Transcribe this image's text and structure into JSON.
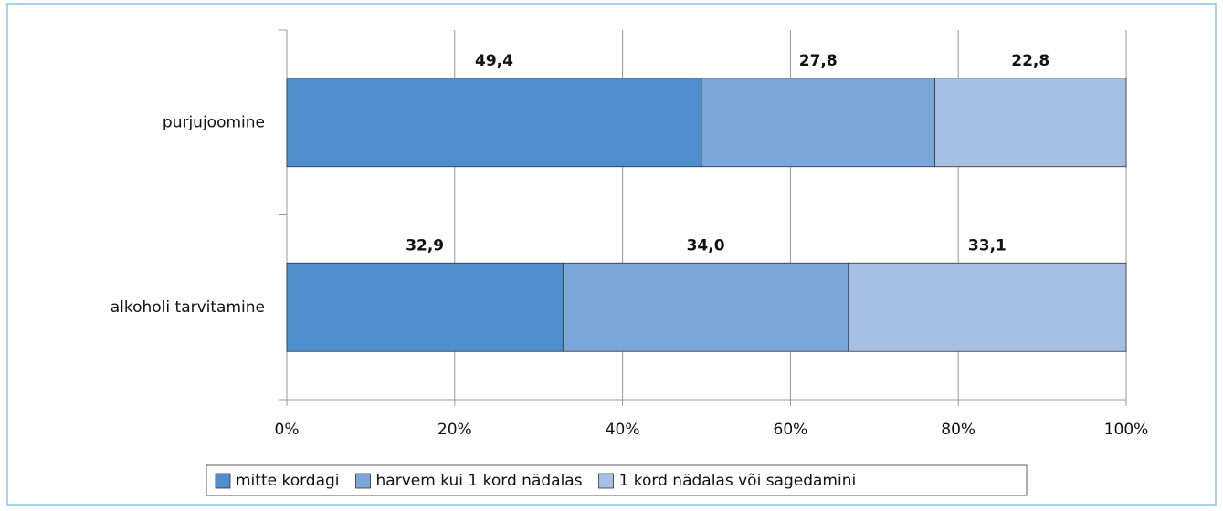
{
  "chart_data": {
    "type": "stacked_barh",
    "categories": [
      "purjujoomine",
      "alkoholi tarvitamine"
    ],
    "series": [
      {
        "name": "mitte kordagi",
        "color": "#4f8fce",
        "values": [
          49.4,
          32.9
        ],
        "value_labels": [
          "49,4",
          "32,9"
        ]
      },
      {
        "name": "harvem kui 1 kord nädalas",
        "color": "#7ba6d8",
        "values": [
          27.8,
          34.0
        ],
        "value_labels": [
          "27,8",
          "34,0"
        ]
      },
      {
        "name": "1 kord nädalas või sagedamini",
        "color": "#a6bfe4",
        "values": [
          22.8,
          33.1
        ],
        "value_labels": [
          "22,8",
          "33,1"
        ]
      }
    ],
    "xlim": [
      0,
      100
    ],
    "xticks": [
      {
        "value": 0,
        "label": "0%"
      },
      {
        "value": 20,
        "label": "20%"
      },
      {
        "value": 40,
        "label": "40%"
      },
      {
        "value": 60,
        "label": "60%"
      },
      {
        "value": 80,
        "label": "80%"
      },
      {
        "value": 100,
        "label": "100%"
      }
    ],
    "grid": true,
    "legend": "bottom"
  }
}
